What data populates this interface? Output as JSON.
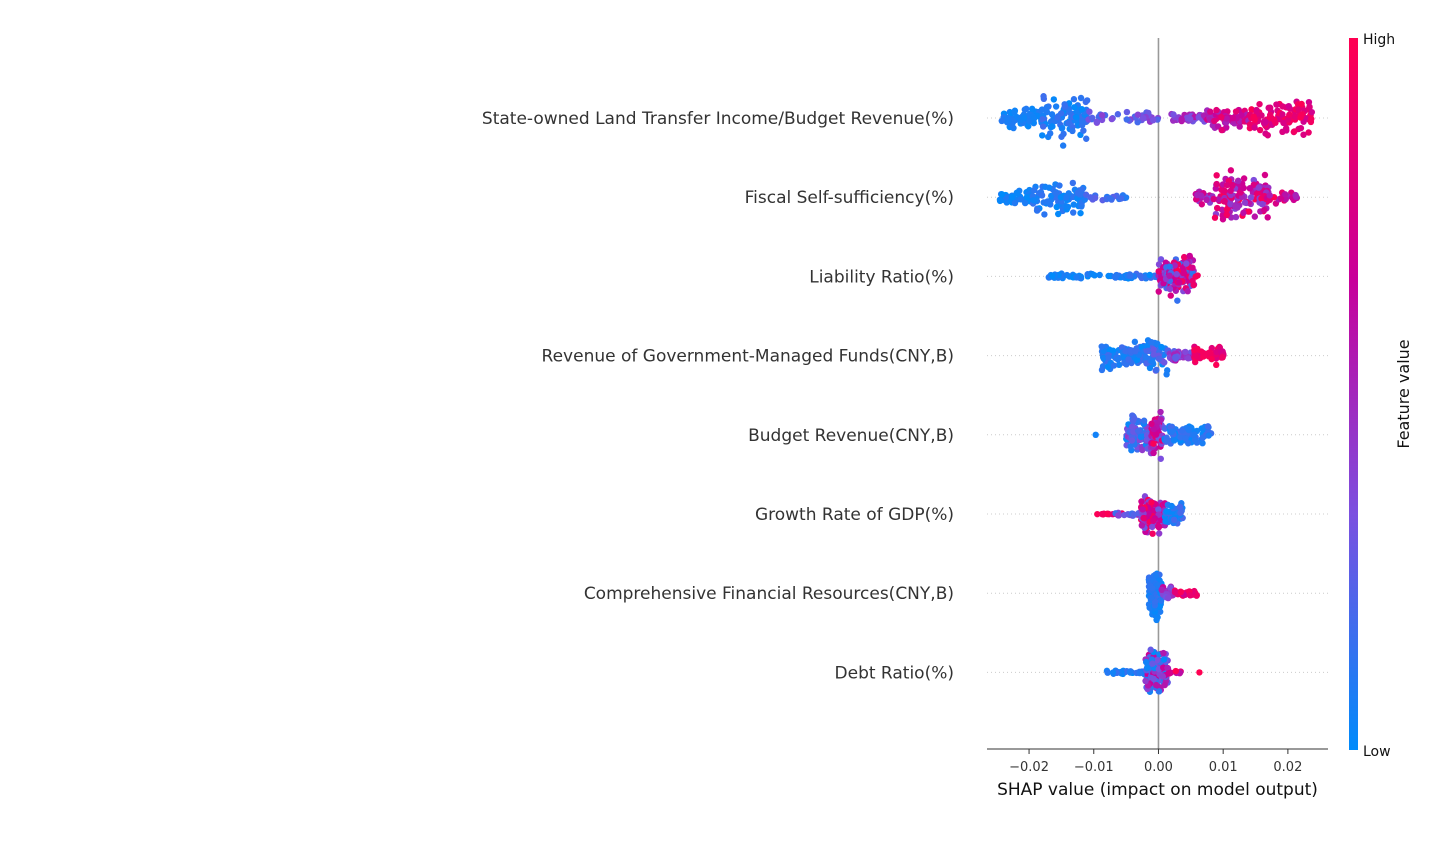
{
  "chart_data": {
    "type": "scatter",
    "subtype": "shap-beeswarm",
    "xlabel": "SHAP value (impact on model output)",
    "xlim": [
      -0.0265,
      0.0262
    ],
    "xticks": [
      -0.02,
      -0.01,
      0.0,
      0.01,
      0.02
    ],
    "xtick_labels": [
      "−0.02",
      "−0.01",
      "0.00",
      "0.01",
      "0.02"
    ],
    "colorbar": {
      "title": "Feature value",
      "high_label": "High",
      "low_label": "Low",
      "colors": [
        "#008bfb",
        "#7b50e0",
        "#c8009a",
        "#ff0052"
      ]
    },
    "grid": false,
    "features": [
      {
        "name": "State-owned Land Transfer Income/Budget Revenue(%)",
        "clusters": [
          {
            "lo": -0.0245,
            "hi": -0.018,
            "n": 60,
            "fmin": 0.0,
            "fmax": 0.1,
            "spread": 0.45
          },
          {
            "lo": -0.018,
            "hi": -0.011,
            "n": 95,
            "fmin": 0.0,
            "fmax": 0.18,
            "spread": 1.0
          },
          {
            "lo": -0.011,
            "hi": -0.001,
            "n": 30,
            "fmin": 0.15,
            "fmax": 0.45,
            "spread": 0.25
          },
          {
            "lo": -0.0025,
            "hi": 0.0,
            "n": 8,
            "fmin": 0.2,
            "fmax": 0.4,
            "spread": 0.3
          },
          {
            "lo": 0.002,
            "hi": 0.0075,
            "n": 40,
            "fmin": 0.3,
            "fmax": 0.6,
            "spread": 0.2
          },
          {
            "lo": 0.0075,
            "hi": 0.014,
            "n": 70,
            "fmin": 0.5,
            "fmax": 0.9,
            "spread": 0.5
          },
          {
            "lo": 0.014,
            "hi": 0.0238,
            "n": 110,
            "fmin": 0.7,
            "fmax": 1.0,
            "spread": 0.75
          }
        ]
      },
      {
        "name": "Fiscal Self-sufficiency(%)",
        "clusters": [
          {
            "lo": -0.0245,
            "hi": -0.0195,
            "n": 40,
            "fmin": 0.0,
            "fmax": 0.1,
            "spread": 0.35
          },
          {
            "lo": -0.0195,
            "hi": -0.0115,
            "n": 90,
            "fmin": 0.0,
            "fmax": 0.15,
            "spread": 0.75
          },
          {
            "lo": -0.0115,
            "hi": -0.0048,
            "n": 18,
            "fmin": 0.05,
            "fmax": 0.25,
            "spread": 0.15
          },
          {
            "lo": 0.0055,
            "hi": 0.0085,
            "n": 20,
            "fmin": 0.35,
            "fmax": 0.8,
            "spread": 0.35
          },
          {
            "lo": 0.0085,
            "hi": 0.017,
            "n": 140,
            "fmin": 0.35,
            "fmax": 1.0,
            "spread": 1.0
          },
          {
            "lo": 0.017,
            "hi": 0.0215,
            "n": 20,
            "fmin": 0.5,
            "fmax": 1.0,
            "spread": 0.25
          }
        ]
      },
      {
        "name": "Liability Ratio(%)",
        "clusters": [
          {
            "lo": -0.0175,
            "hi": -0.0065,
            "n": 40,
            "fmin": 0.0,
            "fmax": 0.12,
            "spread": 0.12
          },
          {
            "lo": -0.0065,
            "hi": 0.0,
            "n": 40,
            "fmin": 0.0,
            "fmax": 0.2,
            "spread": 0.1
          },
          {
            "lo": 0.0,
            "hi": 0.0055,
            "n": 140,
            "fmin": 0.1,
            "fmax": 1.0,
            "spread": 0.9
          },
          {
            "lo": 0.0055,
            "hi": 0.0065,
            "n": 2,
            "fmin": 0.9,
            "fmax": 1.0,
            "spread": 0.05
          }
        ]
      },
      {
        "name": "Revenue of Government-Managed Funds(CNY,B)",
        "clusters": [
          {
            "lo": -0.0088,
            "hi": -0.002,
            "n": 110,
            "fmin": 0.0,
            "fmax": 0.18,
            "spread": 0.6
          },
          {
            "lo": -0.002,
            "hi": 0.0015,
            "n": 60,
            "fmin": 0.0,
            "fmax": 0.3,
            "spread": 0.95
          },
          {
            "lo": 0.0015,
            "hi": 0.0055,
            "n": 45,
            "fmin": 0.2,
            "fmax": 0.6,
            "spread": 0.2
          },
          {
            "lo": 0.0055,
            "hi": 0.0102,
            "n": 50,
            "fmin": 0.75,
            "fmax": 1.0,
            "spread": 0.4
          }
        ]
      },
      {
        "name": "Budget Revenue(CNY,B)",
        "clusters": [
          {
            "lo": -0.0098,
            "hi": -0.0092,
            "n": 1,
            "fmin": 0.0,
            "fmax": 0.05,
            "spread": 0.0
          },
          {
            "lo": -0.005,
            "hi": -0.0012,
            "n": 100,
            "fmin": 0.0,
            "fmax": 0.45,
            "spread": 0.8
          },
          {
            "lo": -0.0012,
            "hi": 0.0008,
            "n": 70,
            "fmin": 0.3,
            "fmax": 1.0,
            "spread": 0.95
          },
          {
            "lo": 0.0008,
            "hi": 0.0082,
            "n": 80,
            "fmin": 0.0,
            "fmax": 0.2,
            "spread": 0.55
          }
        ]
      },
      {
        "name": "Growth Rate of GDP(%)",
        "clusters": [
          {
            "lo": -0.0095,
            "hi": -0.0055,
            "n": 12,
            "fmin": 0.75,
            "fmax": 1.0,
            "spread": 0.05
          },
          {
            "lo": -0.0068,
            "hi": -0.0028,
            "n": 15,
            "fmin": 0.15,
            "fmax": 0.5,
            "spread": 0.08
          },
          {
            "lo": -0.0028,
            "hi": 0.001,
            "n": 130,
            "fmin": 0.3,
            "fmax": 1.0,
            "spread": 0.8
          },
          {
            "lo": 0.001,
            "hi": 0.0038,
            "n": 50,
            "fmin": 0.0,
            "fmax": 0.2,
            "spread": 0.4
          }
        ]
      },
      {
        "name": "Comprehensive Financial Resources(CNY,B)",
        "clusters": [
          {
            "lo": -0.0015,
            "hi": 0.0005,
            "n": 130,
            "fmin": 0.0,
            "fmax": 0.15,
            "spread": 1.0
          },
          {
            "lo": 0.0005,
            "hi": 0.0025,
            "n": 30,
            "fmin": 0.3,
            "fmax": 0.7,
            "spread": 0.25
          },
          {
            "lo": 0.0025,
            "hi": 0.0062,
            "n": 35,
            "fmin": 0.7,
            "fmax": 1.0,
            "spread": 0.15
          }
        ]
      },
      {
        "name": "Debt Ratio(%)",
        "clusters": [
          {
            "lo": -0.008,
            "hi": -0.002,
            "n": 30,
            "fmin": 0.0,
            "fmax": 0.15,
            "spread": 0.08
          },
          {
            "lo": -0.002,
            "hi": 0.0015,
            "n": 150,
            "fmin": 0.0,
            "fmax": 0.7,
            "spread": 1.0
          },
          {
            "lo": 0.0015,
            "hi": 0.0035,
            "n": 12,
            "fmin": 0.6,
            "fmax": 1.0,
            "spread": 0.08
          },
          {
            "lo": 0.0062,
            "hi": 0.0064,
            "n": 1,
            "fmin": 1.0,
            "fmax": 1.0,
            "spread": 0.0
          }
        ]
      }
    ]
  }
}
